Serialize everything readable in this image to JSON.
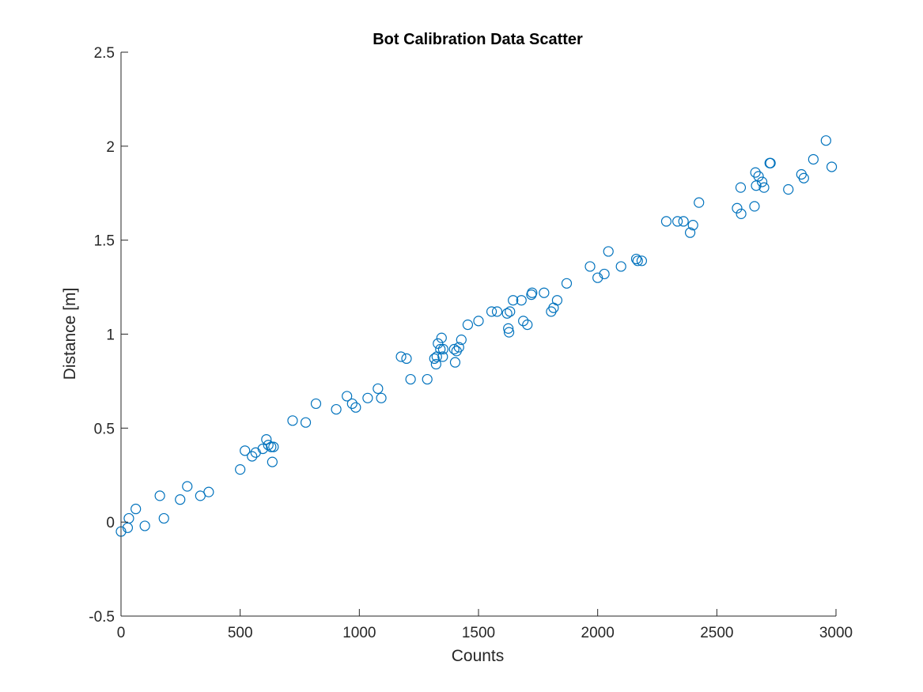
{
  "chart_data": {
    "type": "scatter",
    "title": "Bot Calibration Data Scatter",
    "xlabel": "Counts",
    "ylabel": "Distance [m]",
    "xlim": [
      0,
      3000
    ],
    "ylim": [
      -0.5,
      2.5
    ],
    "xticks": [
      0,
      500,
      1000,
      1500,
      2000,
      2500,
      3000
    ],
    "yticks": [
      -0.5,
      0,
      0.5,
      1,
      1.5,
      2,
      2.5
    ],
    "xtick_labels": [
      "0",
      "500",
      "1000",
      "1500",
      "2000",
      "2500",
      "3000"
    ],
    "ytick_labels": [
      "-0.5",
      "0",
      "0.5",
      "1",
      "1.5",
      "2",
      "2.5"
    ],
    "grid": false,
    "marker": "open-circle",
    "color": "#0072BD",
    "series": [
      {
        "x": [
          0,
          28,
          33,
          62,
          100,
          163,
          180,
          248,
          278,
          333,
          368,
          500,
          520,
          550,
          565,
          595,
          610,
          618,
          630,
          635,
          640,
          720,
          775,
          818,
          903,
          948,
          970,
          985,
          1035,
          1078,
          1092,
          1175,
          1198,
          1215,
          1285,
          1315,
          1322,
          1325,
          1330,
          1340,
          1345,
          1350,
          1352,
          1398,
          1402,
          1408,
          1418,
          1428,
          1455,
          1500,
          1555,
          1578,
          1620,
          1625,
          1628,
          1632,
          1645,
          1680,
          1688,
          1705,
          1722,
          1725,
          1775,
          1805,
          1815,
          1830,
          1870,
          1968,
          2000,
          2028,
          2045,
          2098,
          2162,
          2168,
          2185,
          2288,
          2335,
          2360,
          2388,
          2400,
          2425,
          2585,
          2600,
          2602,
          2658,
          2662,
          2665,
          2675,
          2690,
          2698,
          2722,
          2725,
          2800,
          2855,
          2865,
          2905,
          2958,
          2982
        ],
        "y": [
          -0.05,
          -0.03,
          0.02,
          0.07,
          -0.02,
          0.14,
          0.02,
          0.12,
          0.19,
          0.14,
          0.16,
          0.28,
          0.38,
          0.35,
          0.37,
          0.39,
          0.44,
          0.41,
          0.4,
          0.32,
          0.4,
          0.54,
          0.53,
          0.63,
          0.6,
          0.67,
          0.63,
          0.61,
          0.66,
          0.71,
          0.66,
          0.88,
          0.87,
          0.76,
          0.76,
          0.87,
          0.84,
          0.88,
          0.95,
          0.92,
          0.98,
          0.88,
          0.92,
          0.92,
          0.85,
          0.91,
          0.93,
          0.97,
          1.05,
          1.07,
          1.12,
          1.12,
          1.11,
          1.03,
          1.01,
          1.12,
          1.18,
          1.18,
          1.07,
          1.05,
          1.21,
          1.22,
          1.22,
          1.12,
          1.14,
          1.18,
          1.27,
          1.36,
          1.3,
          1.32,
          1.44,
          1.36,
          1.4,
          1.39,
          1.39,
          1.6,
          1.6,
          1.6,
          1.54,
          1.58,
          1.7,
          1.67,
          1.78,
          1.64,
          1.68,
          1.86,
          1.79,
          1.84,
          1.81,
          1.78,
          1.91,
          1.91,
          1.77,
          1.85,
          1.83,
          1.93,
          2.03,
          1.89
        ]
      }
    ]
  }
}
